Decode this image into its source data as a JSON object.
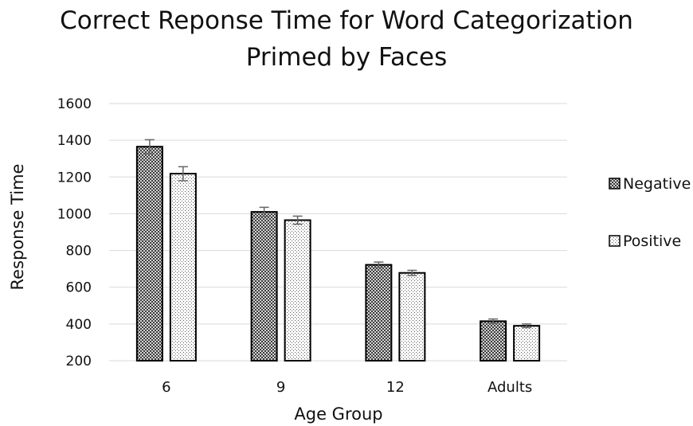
{
  "chart_data": {
    "type": "bar",
    "title": [
      "Correct Reponse Time for Word Categorization",
      "Primed by Faces"
    ],
    "xlabel": "Age Group",
    "ylabel": "Response Time",
    "categories": [
      "6",
      "9",
      "12",
      "Adults"
    ],
    "ylim": [
      200,
      1600
    ],
    "yticks": [
      200,
      400,
      600,
      800,
      1000,
      1200,
      1400,
      1600
    ],
    "grid": true,
    "legend_position": "right",
    "series": [
      {
        "name": "Negative",
        "values": [
          1365,
          1010,
          722,
          415
        ],
        "errors": [
          38,
          25,
          15,
          12
        ],
        "pattern": "dense-dots"
      },
      {
        "name": "Positive",
        "values": [
          1218,
          965,
          678,
          390
        ],
        "errors": [
          38,
          22,
          14,
          10
        ],
        "pattern": "light-dots"
      }
    ]
  }
}
